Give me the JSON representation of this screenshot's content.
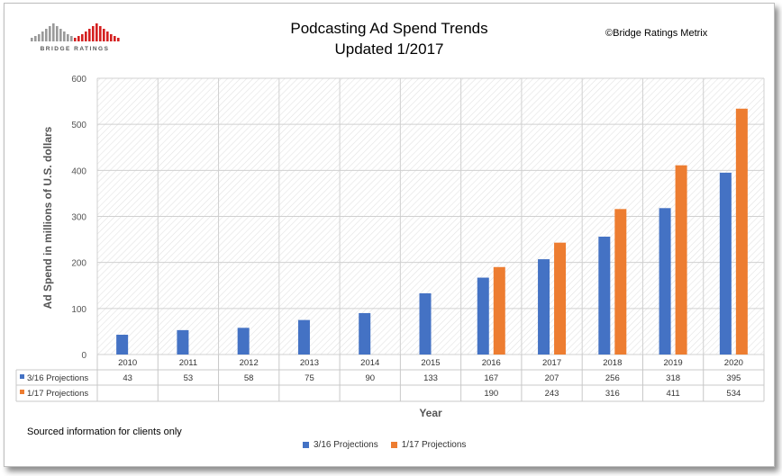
{
  "title_line1": "Podcasting Ad Spend Trends",
  "title_line2": "Updated 1/2017",
  "copyright": "©Bridge Ratings Metrix",
  "logo_text": "BRIDGE RATINGS",
  "source_note": "Sourced information for clients only",
  "colors": {
    "series1": "#4472C4",
    "series2": "#ED7D31",
    "grid": "#d0d0d0",
    "hatch": "#e6e6e6"
  },
  "chart_data": {
    "type": "bar",
    "xlabel": "Year",
    "ylabel": "Ad Spend in millions of U.S. dollars",
    "ylim": [
      0,
      600
    ],
    "yticks": [
      0,
      100,
      200,
      300,
      400,
      500,
      600
    ],
    "categories": [
      "2010",
      "2011",
      "2012",
      "2013",
      "2014",
      "2015",
      "2016",
      "2017",
      "2018",
      "2019",
      "2020"
    ],
    "series": [
      {
        "name": "3/16 Projections",
        "values": [
          43,
          53,
          58,
          75,
          90,
          133,
          167,
          207,
          256,
          318,
          395
        ]
      },
      {
        "name": "1/17 Projections",
        "values": [
          null,
          null,
          null,
          null,
          null,
          null,
          190,
          243,
          316,
          411,
          534
        ]
      }
    ],
    "data_table": true,
    "grid": true,
    "legend": "bottom"
  }
}
